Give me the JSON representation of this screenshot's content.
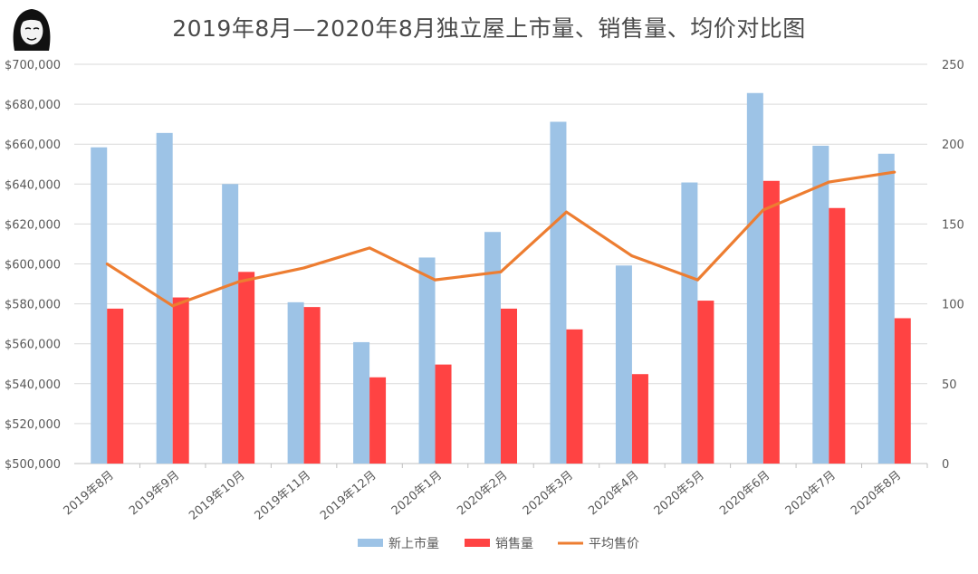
{
  "chart_data": {
    "type": "bar",
    "title": "2019年8月—2020年8月独立屋上市量、销售量、均价对比图",
    "categories": [
      "2019年8月",
      "2019年9月",
      "2019年10月",
      "2019年11月",
      "2019年12月",
      "2020年1月",
      "2020年2月",
      "2020年3月",
      "2020年4月",
      "2020年5月",
      "2020年6月",
      "2020年7月",
      "2020年8月"
    ],
    "series": [
      {
        "name": "新上市量",
        "kind": "bar",
        "axis": "right",
        "color": "#9dc3e6",
        "values": [
          198,
          207,
          175,
          101,
          76,
          129,
          145,
          214,
          124,
          176,
          232,
          199,
          194
        ]
      },
      {
        "name": "销售量",
        "kind": "bar",
        "axis": "right",
        "color": "#ff4343",
        "values": [
          97,
          104,
          120,
          98,
          54,
          62,
          97,
          84,
          56,
          102,
          177,
          160,
          91
        ]
      },
      {
        "name": "平均售价",
        "kind": "line",
        "axis": "left",
        "color": "#ed7d31",
        "values": [
          600000,
          579000,
          591000,
          598000,
          608000,
          592000,
          596000,
          626000,
          604000,
          592000,
          627000,
          641000,
          646000
        ]
      }
    ],
    "y_left": {
      "min": 500000,
      "max": 700000,
      "step": 20000,
      "ticks": [
        "$500,000",
        "$520,000",
        "$540,000",
        "$560,000",
        "$580,000",
        "$600,000",
        "$620,000",
        "$640,000",
        "$660,000",
        "$680,000",
        "$700,000"
      ]
    },
    "y_right": {
      "min": 0,
      "max": 250,
      "step": 50,
      "ticks": [
        "0",
        "50",
        "100",
        "150",
        "200",
        "250"
      ]
    },
    "grid": true,
    "legend_position": "bottom"
  },
  "avatar_label": "author avatar"
}
